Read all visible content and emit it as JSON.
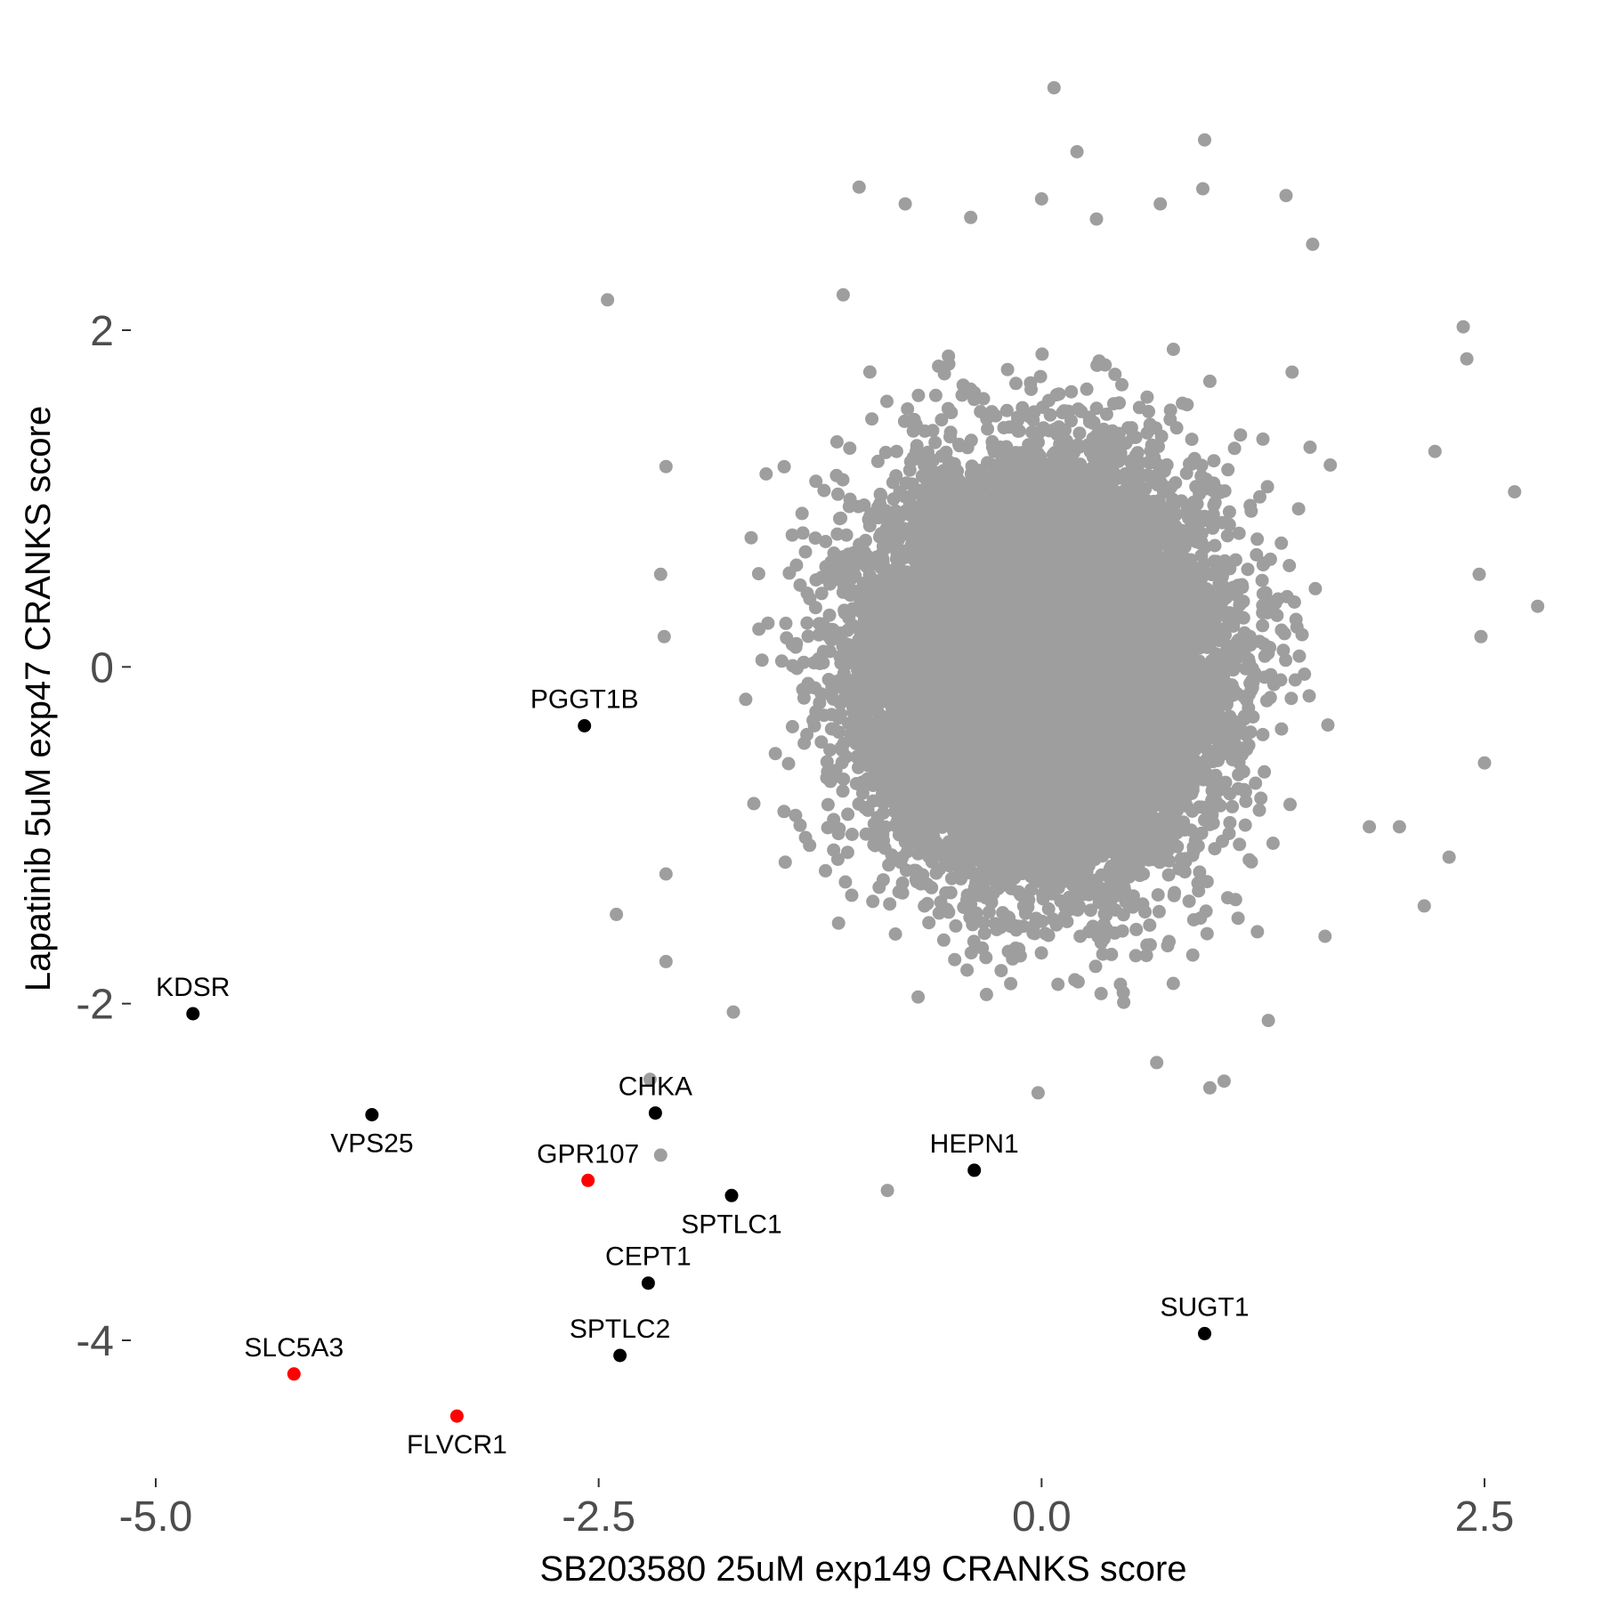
{
  "chart_data": {
    "type": "scatter",
    "xlabel": "SB203580 25uM exp149 CRANKS score",
    "ylabel": "Lapatinib 5uM exp47 CRANKS score",
    "xlim": [
      -5.1,
      2.8
    ],
    "ylim": [
      -4.75,
      3.65
    ],
    "x_ticks": [
      -5.0,
      -2.5,
      0.0,
      2.5
    ],
    "x_tick_labels": [
      "-5.0",
      "-2.5",
      "0.0",
      "2.5"
    ],
    "y_ticks": [
      -4,
      -2,
      0,
      2
    ],
    "y_tick_labels": [
      "-4",
      "-2",
      "0",
      "2"
    ],
    "grid": false,
    "colors": {
      "background": "#ffffff",
      "background_points": "#9e9e9e",
      "highlight_black": "#000000",
      "highlight_red": "#ff0000"
    },
    "background_cloud": {
      "description": "approx. 18,000 genes; bivariate normal cloud",
      "count": 18000,
      "center": [
        0.0,
        0.0
      ],
      "sd": [
        0.45,
        0.55
      ],
      "color": "#9e9e9e"
    },
    "outliers": [
      {
        "x": 0.07,
        "y": 3.44
      },
      {
        "x": 0.2,
        "y": 3.06
      },
      {
        "x": 0.92,
        "y": 3.13
      },
      {
        "x": -1.03,
        "y": 2.85
      },
      {
        "x": -0.77,
        "y": 2.75
      },
      {
        "x": -0.4,
        "y": 2.67
      },
      {
        "x": 0.0,
        "y": 2.78
      },
      {
        "x": 0.31,
        "y": 2.66
      },
      {
        "x": 0.91,
        "y": 2.84
      },
      {
        "x": 1.38,
        "y": 2.8
      },
      {
        "x": 1.53,
        "y": 2.51
      },
      {
        "x": 0.67,
        "y": 2.75
      },
      {
        "x": -2.45,
        "y": 2.18
      },
      {
        "x": -1.12,
        "y": 2.21
      },
      {
        "x": 2.38,
        "y": 2.02
      },
      {
        "x": 2.4,
        "y": 1.83
      },
      {
        "x": 2.67,
        "y": 1.04
      },
      {
        "x": 2.8,
        "y": 0.36
      },
      {
        "x": 2.47,
        "y": 0.55
      },
      {
        "x": 2.5,
        "y": -0.57
      },
      {
        "x": 2.48,
        "y": 0.18
      },
      {
        "x": 2.22,
        "y": 1.28
      },
      {
        "x": -2.12,
        "y": 1.19
      },
      {
        "x": -2.15,
        "y": 0.55
      },
      {
        "x": -2.13,
        "y": 0.18
      },
      {
        "x": -2.12,
        "y": -1.23
      },
      {
        "x": -2.4,
        "y": -1.47
      },
      {
        "x": -2.12,
        "y": -1.75
      },
      {
        "x": -1.74,
        "y": -2.05
      },
      {
        "x": -2.21,
        "y": -2.45
      },
      {
        "x": -2.15,
        "y": -2.9
      },
      {
        "x": -0.87,
        "y": -3.11
      },
      {
        "x": -0.02,
        "y": -2.53
      },
      {
        "x": 0.95,
        "y": -2.5
      },
      {
        "x": 1.03,
        "y": -2.46
      },
      {
        "x": 0.65,
        "y": -2.35
      },
      {
        "x": 1.28,
        "y": -2.1
      },
      {
        "x": 1.6,
        "y": -1.6
      },
      {
        "x": 2.16,
        "y": -1.42
      },
      {
        "x": 2.3,
        "y": -1.13
      },
      {
        "x": 1.85,
        "y": -0.95
      },
      {
        "x": 2.02,
        "y": -0.95
      }
    ],
    "highlighted_genes": [
      {
        "name": "PGGT1B",
        "x": -2.58,
        "y": -0.35,
        "color": "#000000",
        "label_pos": "above"
      },
      {
        "name": "KDSR",
        "x": -4.79,
        "y": -2.06,
        "color": "#000000",
        "label_pos": "above"
      },
      {
        "name": "CHKA",
        "x": -2.18,
        "y": -2.65,
        "color": "#000000",
        "label_pos": "above"
      },
      {
        "name": "VPS25",
        "x": -3.78,
        "y": -2.66,
        "color": "#000000",
        "label_pos": "below"
      },
      {
        "name": "GPR107",
        "x": -2.56,
        "y": -3.05,
        "color": "#ff0000",
        "label_pos": "above"
      },
      {
        "name": "HEPN1",
        "x": -0.38,
        "y": -2.99,
        "color": "#000000",
        "label_pos": "above"
      },
      {
        "name": "SPTLC1",
        "x": -1.75,
        "y": -3.14,
        "color": "#000000",
        "label_pos": "below"
      },
      {
        "name": "CEPT1",
        "x": -2.22,
        "y": -3.66,
        "color": "#000000",
        "label_pos": "above"
      },
      {
        "name": "SUGT1",
        "x": 0.92,
        "y": -3.96,
        "color": "#000000",
        "label_pos": "above"
      },
      {
        "name": "SPTLC2",
        "x": -2.38,
        "y": -4.09,
        "color": "#000000",
        "label_pos": "above"
      },
      {
        "name": "SLC5A3",
        "x": -4.22,
        "y": -4.2,
        "color": "#ff0000",
        "label_pos": "above"
      },
      {
        "name": "FLVCR1",
        "x": -3.3,
        "y": -4.45,
        "color": "#ff0000",
        "label_pos": "below"
      }
    ]
  }
}
